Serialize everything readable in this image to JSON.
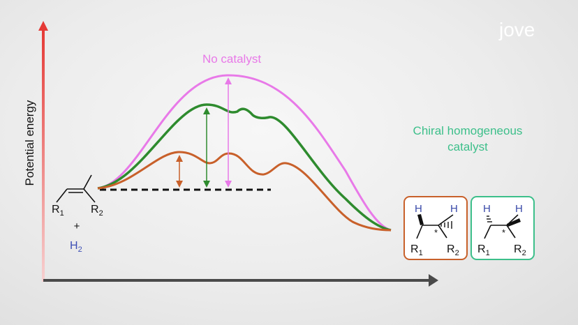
{
  "logo": {
    "text": "jove"
  },
  "axes": {
    "ylabel": "Potential energy"
  },
  "curves": {
    "uncatalyzed_label": "No catalyst",
    "catalyst_label_line1": "Chiral homogeneous",
    "catalyst_label_line2": "catalyst"
  },
  "reactant": {
    "sub_r1": "R",
    "sub_r1_index": "1",
    "sub_r2": "R",
    "sub_r2_index": "2",
    "plus": "+",
    "h2_main": "H",
    "h2_index": "2"
  },
  "product_left": {
    "h_left": "H",
    "h_right": "H",
    "star": "*",
    "r1": "R",
    "r1_index": "1",
    "r2": "R",
    "r2_index": "2"
  },
  "product_right": {
    "h_left": "H",
    "h_right": "H",
    "star": "*",
    "r1": "R",
    "r1_index": "1",
    "r2": "R",
    "r2_index": "2"
  },
  "colors": {
    "no_catalyst": "#e879e8",
    "green_path": "#2e8b2e",
    "orange_path": "#c8602a",
    "catalyst_text": "#3cbf8a",
    "h2_text": "#3d4fb5",
    "product_h": "#3a4aa8",
    "box_orange": "#c8602a",
    "box_green": "#3cbf8a",
    "axis_top": "#e53935",
    "axis_bottom": "#f6c7c7"
  }
}
